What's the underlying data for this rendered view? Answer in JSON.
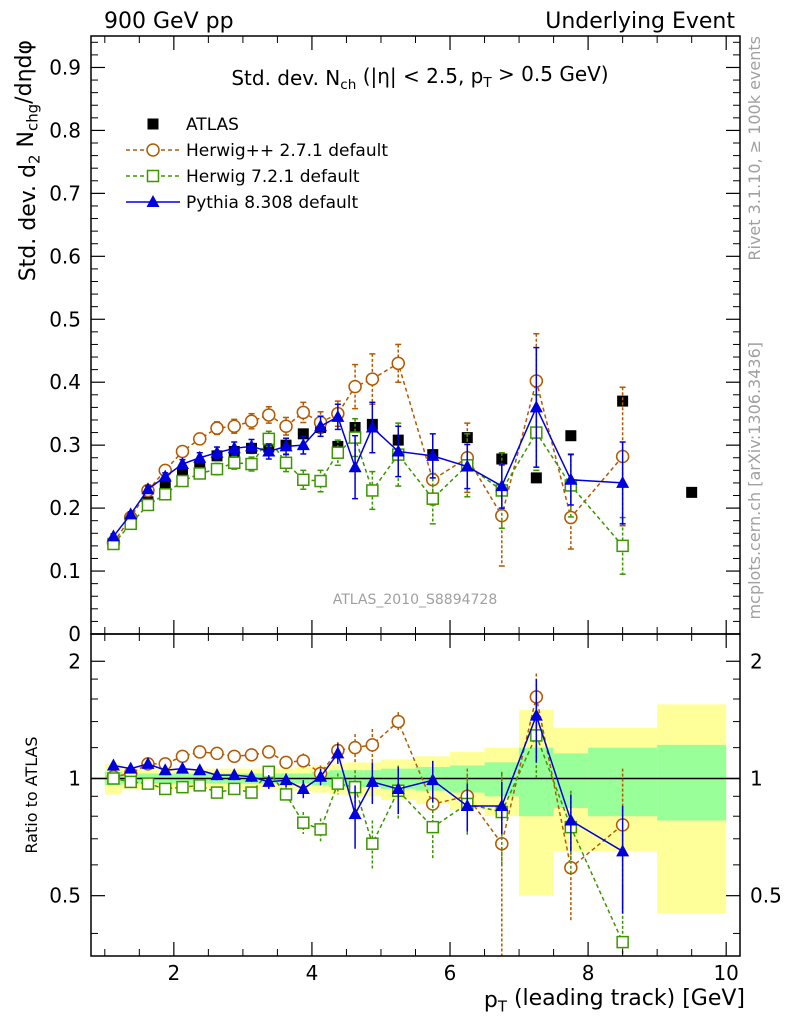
{
  "header": {
    "left": "900 GeV pp",
    "right": "Underlying Event"
  },
  "side_labels": {
    "rivet": "Rivet 3.1.10, ≥ 100k events",
    "mcplots": "mcplots.cern.ch [arXiv:1306.3436]"
  },
  "colors": {
    "atlas": "#000000",
    "herwigpp": "#b35900",
    "herwig7": "#3c9600",
    "pythia": "#0000dd",
    "band_inner": "#99ff99",
    "band_outer": "#ffff99",
    "watermark": "#a0a0a0"
  },
  "chart_data": {
    "type": "scatter",
    "title_parts": [
      "Std. dev. N",
      "ch",
      " (|η| < 2.5, p",
      "T",
      " > 0.5 GeV)"
    ],
    "ylabel_parts": [
      "Std. dev. d",
      "2",
      " N",
      "chg",
      "/dηdφ"
    ],
    "xlabel_parts": [
      "p",
      "T",
      " (leading track) [GeV]"
    ],
    "ratio_ylabel": "Ratio to ATLAS",
    "watermark": "ATLAS_2010_S8894728",
    "xlim": [
      0.8,
      10.2
    ],
    "ylim": [
      0,
      0.95
    ],
    "ratio_ylim": [
      0.35,
      2.35
    ],
    "x_ticks": [
      2,
      4,
      6,
      8,
      10
    ],
    "x_tick_labels": [
      "2",
      "4",
      "6",
      "8",
      "10"
    ],
    "y_ticks": [
      0,
      0.1,
      0.2,
      0.3,
      0.4,
      0.5,
      0.6,
      0.7,
      0.8,
      0.9
    ],
    "y_tick_labels": [
      "0",
      "0.1",
      "0.2",
      "0.3",
      "0.4",
      "0.5",
      "0.6",
      "0.7",
      "0.8",
      "0.9"
    ],
    "ratio_ticks": [
      0.5,
      1,
      2
    ],
    "ratio_tick_labels": [
      "0.5",
      "1",
      "2"
    ],
    "legend": [
      "ATLAS",
      "Herwig++ 2.7.1 default",
      "Herwig 7.2.1 default",
      "Pythia 8.308 default"
    ],
    "legend_position": "top-left",
    "series": [
      {
        "name": "ATLAS",
        "marker": "filled-square",
        "x": [
          1.125,
          1.375,
          1.625,
          1.875,
          2.125,
          2.375,
          2.625,
          2.875,
          3.125,
          3.375,
          3.625,
          3.875,
          4.125,
          4.375,
          4.625,
          4.875,
          5.25,
          5.75,
          6.25,
          6.75,
          7.25,
          7.75,
          8.5,
          9.5
        ],
        "y": [
          0.143,
          0.179,
          0.21,
          0.238,
          0.255,
          0.265,
          0.283,
          0.29,
          0.295,
          0.297,
          0.3,
          0.318,
          0.328,
          0.298,
          0.328,
          0.333,
          0.308,
          0.285,
          0.312,
          0.278,
          0.248,
          0.315,
          0.37,
          0.225
        ]
      },
      {
        "name": "Herwig++ 2.7.1 default",
        "marker": "open-circle",
        "x": [
          1.125,
          1.375,
          1.625,
          1.875,
          2.125,
          2.375,
          2.625,
          2.875,
          3.125,
          3.375,
          3.625,
          3.875,
          4.125,
          4.375,
          4.625,
          4.875,
          5.25,
          5.75,
          6.25,
          6.75,
          7.25,
          7.75,
          8.5
        ],
        "y": [
          0.145,
          0.185,
          0.228,
          0.26,
          0.29,
          0.31,
          0.327,
          0.33,
          0.338,
          0.348,
          0.33,
          0.352,
          0.336,
          0.35,
          0.393,
          0.405,
          0.43,
          0.245,
          0.28,
          0.188,
          0.402,
          0.185,
          0.282
        ],
        "err": [
          0.005,
          0.005,
          0.006,
          0.007,
          0.008,
          0.009,
          0.01,
          0.011,
          0.012,
          0.013,
          0.014,
          0.016,
          0.017,
          0.02,
          0.035,
          0.04,
          0.03,
          0.04,
          0.055,
          0.08,
          0.075,
          0.05,
          0.11
        ],
        "ratio": [
          1.01,
          1.03,
          1.09,
          1.09,
          1.14,
          1.17,
          1.16,
          1.14,
          1.15,
          1.17,
          1.1,
          1.11,
          1.03,
          1.18,
          1.2,
          1.22,
          1.4,
          0.86,
          0.9,
          0.68,
          1.62,
          0.59,
          0.76
        ],
        "ratio_err": [
          0.02,
          0.02,
          0.02,
          0.02,
          0.02,
          0.02,
          0.03,
          0.03,
          0.03,
          0.04,
          0.04,
          0.05,
          0.05,
          0.06,
          0.1,
          0.12,
          0.08,
          0.13,
          0.16,
          0.35,
          0.24,
          0.16,
          0.3
        ]
      },
      {
        "name": "Herwig 7.2.1 default",
        "marker": "open-square",
        "x": [
          1.125,
          1.375,
          1.625,
          1.875,
          2.125,
          2.375,
          2.625,
          2.875,
          3.125,
          3.375,
          3.625,
          3.875,
          4.125,
          4.375,
          4.625,
          4.875,
          5.25,
          5.75,
          6.25,
          6.75,
          7.25,
          7.75,
          8.5
        ],
        "y": [
          0.143,
          0.175,
          0.205,
          0.222,
          0.243,
          0.255,
          0.262,
          0.272,
          0.27,
          0.31,
          0.272,
          0.245,
          0.243,
          0.288,
          0.312,
          0.228,
          0.285,
          0.215,
          0.268,
          0.228,
          0.32,
          0.236,
          0.14
        ],
        "err": [
          0.005,
          0.005,
          0.006,
          0.007,
          0.008,
          0.008,
          0.009,
          0.01,
          0.011,
          0.012,
          0.014,
          0.015,
          0.017,
          0.02,
          0.03,
          0.03,
          0.05,
          0.04,
          0.05,
          0.06,
          0.06,
          0.05,
          0.045
        ],
        "ratio": [
          1.0,
          0.98,
          0.97,
          0.94,
          0.95,
          0.96,
          0.92,
          0.94,
          0.92,
          1.04,
          0.91,
          0.77,
          0.74,
          0.97,
          0.95,
          0.68,
          0.93,
          0.75,
          0.86,
          0.82,
          1.29,
          0.75,
          0.38
        ],
        "ratio_err": [
          0.02,
          0.02,
          0.02,
          0.02,
          0.02,
          0.02,
          0.03,
          0.03,
          0.03,
          0.04,
          0.04,
          0.05,
          0.05,
          0.06,
          0.1,
          0.1,
          0.15,
          0.13,
          0.15,
          0.22,
          0.3,
          0.18,
          0.15
        ]
      },
      {
        "name": "Pythia 8.308 default",
        "marker": "filled-triangle",
        "x": [
          1.125,
          1.375,
          1.625,
          1.875,
          2.125,
          2.375,
          2.625,
          2.875,
          3.125,
          3.375,
          3.625,
          3.875,
          4.125,
          4.375,
          4.625,
          4.875,
          5.25,
          5.75,
          6.25,
          6.75,
          7.25,
          7.75,
          8.5
        ],
        "y": [
          0.155,
          0.19,
          0.23,
          0.25,
          0.27,
          0.28,
          0.288,
          0.295,
          0.298,
          0.29,
          0.298,
          0.3,
          0.33,
          0.345,
          0.265,
          0.328,
          0.29,
          0.283,
          0.266,
          0.235,
          0.36,
          0.245,
          0.24
        ],
        "err": [
          0.004,
          0.004,
          0.005,
          0.006,
          0.007,
          0.008,
          0.009,
          0.01,
          0.011,
          0.012,
          0.013,
          0.014,
          0.016,
          0.02,
          0.05,
          0.04,
          0.04,
          0.035,
          0.035,
          0.035,
          0.095,
          0.04,
          0.065
        ],
        "ratio": [
          1.08,
          1.06,
          1.09,
          1.05,
          1.06,
          1.05,
          1.02,
          1.02,
          1.01,
          0.98,
          0.99,
          0.94,
          1.01,
          1.16,
          0.81,
          0.98,
          0.94,
          0.99,
          0.85,
          0.85,
          1.45,
          0.78,
          0.65
        ],
        "ratio_err": [
          0.02,
          0.02,
          0.02,
          0.02,
          0.02,
          0.02,
          0.03,
          0.03,
          0.03,
          0.04,
          0.04,
          0.05,
          0.05,
          0.07,
          0.15,
          0.12,
          0.13,
          0.12,
          0.12,
          0.13,
          0.35,
          0.13,
          0.2
        ]
      }
    ],
    "atlas_bands": {
      "x_low": [
        1.0,
        1.25,
        1.5,
        1.75,
        2.0,
        2.25,
        2.5,
        2.75,
        3.0,
        3.25,
        3.5,
        3.75,
        4.0,
        4.25,
        4.5,
        4.75,
        5.0,
        5.5,
        6.0,
        6.5,
        7.0,
        7.5,
        8.0,
        9.0
      ],
      "x_high": [
        1.25,
        1.5,
        1.75,
        2.0,
        2.25,
        2.5,
        2.75,
        3.0,
        3.25,
        3.5,
        3.75,
        4.0,
        4.25,
        4.5,
        4.75,
        5.0,
        5.5,
        6.0,
        6.5,
        7.0,
        7.5,
        8.0,
        9.0,
        10.0
      ],
      "inner": [
        0.04,
        0.03,
        0.03,
        0.03,
        0.03,
        0.03,
        0.03,
        0.03,
        0.03,
        0.03,
        0.03,
        0.03,
        0.04,
        0.05,
        0.05,
        0.05,
        0.06,
        0.07,
        0.08,
        0.1,
        0.2,
        0.16,
        0.2,
        0.22
      ],
      "outer": [
        0.09,
        0.06,
        0.06,
        0.06,
        0.06,
        0.06,
        0.06,
        0.06,
        0.06,
        0.06,
        0.06,
        0.07,
        0.08,
        0.09,
        0.1,
        0.1,
        0.12,
        0.14,
        0.17,
        0.2,
        0.5,
        0.35,
        0.35,
        0.55
      ]
    }
  }
}
